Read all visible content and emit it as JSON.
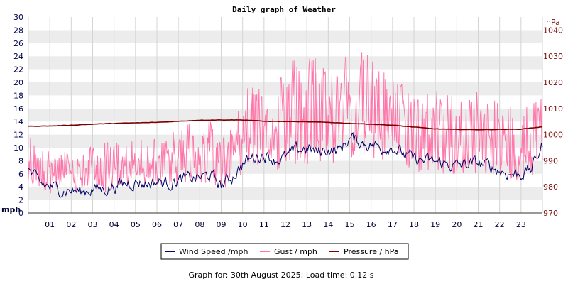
{
  "chart_data": {
    "type": "line",
    "title": "Daily graph of Weather",
    "left_axis": {
      "unit": "mph",
      "ylim": [
        0,
        30
      ],
      "ticks": [
        "0",
        "2",
        "4",
        "6",
        "8",
        "10",
        "12",
        "14",
        "16",
        "18",
        "20",
        "22",
        "24",
        "26",
        "28",
        "30"
      ]
    },
    "right_axis": {
      "unit": "hPa",
      "ylim": [
        970,
        1045
      ],
      "ticks": [
        "970",
        "980",
        "990",
        "1000",
        "1010",
        "1020",
        "1030",
        "1040"
      ]
    },
    "x_axis": {
      "xlim": [
        0,
        24
      ],
      "ticks": [
        "01",
        "02",
        "03",
        "04",
        "05",
        "06",
        "07",
        "08",
        "09",
        "10",
        "11",
        "12",
        "13",
        "14",
        "15",
        "16",
        "17",
        "18",
        "19",
        "20",
        "21",
        "22",
        "23"
      ]
    },
    "grid": true,
    "legend_position": "bottom-center",
    "series": [
      {
        "name": "Wind Speed /mph",
        "axis": "left",
        "color": "#000066",
        "x": [
          0,
          0.5,
          1,
          1.5,
          2,
          2.5,
          3,
          3.5,
          4,
          4.5,
          5,
          5.5,
          6,
          6.5,
          7,
          7.5,
          8,
          8.5,
          9,
          9.5,
          10,
          10.5,
          11,
          11.5,
          12,
          12.5,
          13,
          13.5,
          14,
          14.5,
          15,
          15.5,
          16,
          16.5,
          17,
          17.5,
          18,
          18.5,
          19,
          19.5,
          20,
          20.5,
          21,
          21.5,
          22,
          22.5,
          23,
          23.5,
          24
        ],
        "values": [
          6.5,
          4.5,
          4.0,
          3.6,
          3.5,
          3.2,
          3.8,
          3.6,
          4.1,
          4.5,
          4.8,
          4.5,
          4.8,
          4.6,
          5.0,
          5.2,
          5.4,
          5.8,
          4.2,
          5.5,
          7.5,
          8.5,
          9.0,
          8.2,
          8.5,
          9.5,
          10.0,
          9.2,
          9.8,
          9.5,
          11.5,
          10.8,
          10.5,
          10.0,
          10.2,
          9.0,
          8.2,
          8.0,
          7.8,
          7.5,
          7.2,
          7.5,
          7.6,
          7.2,
          6.5,
          6.0,
          6.0,
          6.8,
          10.5
        ]
      },
      {
        "name": "Gust / mph",
        "axis": "left",
        "color": "#ff77aa",
        "x": [
          0,
          0.5,
          1,
          1.5,
          2,
          2.5,
          3,
          3.5,
          4,
          4.5,
          5,
          5.5,
          6,
          6.5,
          7,
          7.5,
          8,
          8.5,
          9,
          9.5,
          10,
          10.5,
          11,
          11.5,
          12,
          12.5,
          13,
          13.5,
          14,
          14.5,
          15,
          15.5,
          16,
          16.5,
          17,
          17.5,
          18,
          18.5,
          19,
          19.5,
          20,
          20.5,
          21,
          21.5,
          22,
          22.5,
          23,
          23.5,
          24
        ],
        "values": [
          8.0,
          7.0,
          7.0,
          6.5,
          6.5,
          6.0,
          7.0,
          6.5,
          7.0,
          7.5,
          7.5,
          7.5,
          7.5,
          8.0,
          9.0,
          9.5,
          10.0,
          10.0,
          8.0,
          10.0,
          13.0,
          15.0,
          15.5,
          14.0,
          14.5,
          16.0,
          18.0,
          16.5,
          17.0,
          16.0,
          18.5,
          17.5,
          17.5,
          16.5,
          16.0,
          14.5,
          13.0,
          12.5,
          13.0,
          12.5,
          12.0,
          12.5,
          12.5,
          12.0,
          11.5,
          11.0,
          10.5,
          11.0,
          16.0
        ],
        "low": [
          4.0,
          3.5,
          3.0,
          2.8,
          2.8,
          2.8,
          3.0,
          3.0,
          3.5,
          3.5,
          4.0,
          4.0,
          4.0,
          4.0,
          4.0,
          4.2,
          4.5,
          4.8,
          3.5,
          4.5,
          6.0,
          7.0,
          7.0,
          6.5,
          6.5,
          7.0,
          7.5,
          7.5,
          7.5,
          7.5,
          8.0,
          8.0,
          8.0,
          7.5,
          7.5,
          7.0,
          6.0,
          6.0,
          6.0,
          6.0,
          6.0,
          6.0,
          6.0,
          5.5,
          5.0,
          5.0,
          5.0,
          5.5,
          7.5
        ],
        "high": [
          12.5,
          10.0,
          9.5,
          9.5,
          9.5,
          9.0,
          10.5,
          11.0,
          11.0,
          11.0,
          11.0,
          11.5,
          12.0,
          12.0,
          13.0,
          14.5,
          15.0,
          14.5,
          11.0,
          15.0,
          19.0,
          20.5,
          21.5,
          22.0,
          22.0,
          25.0,
          26.5,
          24.0,
          24.0,
          22.0,
          26.5,
          25.0,
          24.0,
          22.0,
          21.0,
          20.0,
          19.0,
          19.0,
          19.0,
          18.5,
          18.5,
          18.5,
          19.0,
          17.5,
          17.0,
          17.0,
          16.5,
          17.0,
          20.0
        ]
      },
      {
        "name": "Pressure / hPa",
        "axis": "right",
        "color": "#7a0000",
        "x": [
          0,
          1,
          2,
          3,
          4,
          5,
          6,
          7,
          8,
          9,
          10,
          10.5,
          11,
          12,
          13,
          14,
          15,
          16,
          17,
          18,
          19,
          20,
          21,
          22,
          23,
          24
        ],
        "values": [
          1003.2,
          1003.3,
          1003.6,
          1004.0,
          1004.3,
          1004.5,
          1004.7,
          1005.1,
          1005.5,
          1005.6,
          1005.6,
          1005.4,
          1005.1,
          1005.0,
          1004.9,
          1004.7,
          1004.3,
          1004.0,
          1003.6,
          1002.9,
          1002.2,
          1002.0,
          1001.9,
          1002.0,
          1002.1,
          1003.0
        ]
      }
    ]
  },
  "footer": "Graph for: 30th August 2025; Load time: 0.12 s"
}
